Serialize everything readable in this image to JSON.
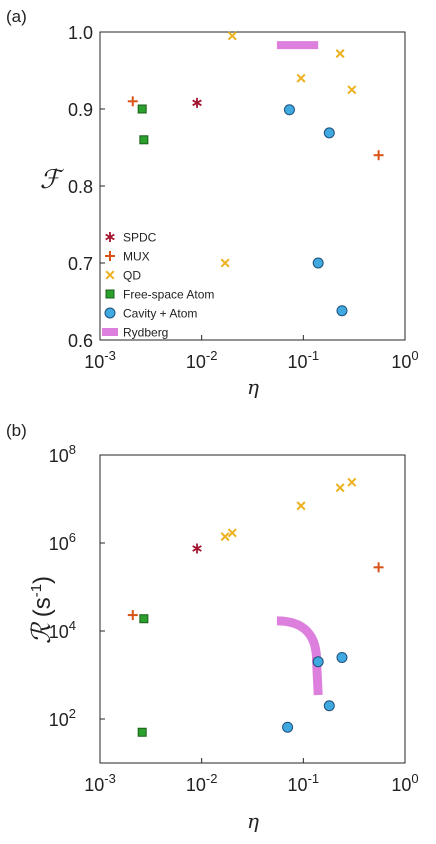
{
  "chart_data": [
    {
      "panel_label": "(a)",
      "type": "scatter",
      "xlabel": "η",
      "ylabel": "ℱ",
      "xscale": "log",
      "xlim": [
        0.001,
        1
      ],
      "ylim": [
        0.6,
        1.0
      ],
      "x_ticks": [
        {
          "value": 0.001,
          "base": "10",
          "exp": "-3"
        },
        {
          "value": 0.01,
          "base": "10",
          "exp": "-2"
        },
        {
          "value": 0.1,
          "base": "10",
          "exp": "-1"
        },
        {
          "value": 1,
          "base": "10",
          "exp": "0"
        }
      ],
      "y_ticks": [
        {
          "value": 0.6,
          "label": "0.6"
        },
        {
          "value": 0.7,
          "label": "0.7"
        },
        {
          "value": 0.8,
          "label": "0.8"
        },
        {
          "value": 0.9,
          "label": "0.9"
        },
        {
          "value": 1.0,
          "label": "1.0"
        }
      ],
      "legend_position": "bottom-left",
      "series": [
        {
          "name": "SPDC",
          "marker": "star",
          "color": "#a2142f",
          "points": [
            [
              0.009,
              0.908
            ]
          ]
        },
        {
          "name": "MUX",
          "marker": "plus",
          "color": "#d95319",
          "points": [
            [
              0.0021,
              0.91
            ],
            [
              0.55,
              0.84
            ]
          ]
        },
        {
          "name": "QD",
          "marker": "x",
          "color": "#edb120",
          "points": [
            [
              0.02,
              0.995
            ],
            [
              0.095,
              0.94
            ],
            [
              0.23,
              0.972
            ],
            [
              0.3,
              0.925
            ],
            [
              0.017,
              0.7
            ]
          ]
        },
        {
          "name": "Free-space Atom",
          "marker": "square",
          "color": "#2ca02c",
          "points": [
            [
              0.0026,
              0.9
            ],
            [
              0.0027,
              0.86
            ]
          ]
        },
        {
          "name": "Cavity + Atom",
          "marker": "circle",
          "color": "#3fa9e0",
          "points": [
            [
              0.073,
              0.899
            ],
            [
              0.18,
              0.869
            ],
            [
              0.14,
              0.7
            ],
            [
              0.24,
              0.638
            ]
          ]
        },
        {
          "name": "Rydberg",
          "marker": "bar",
          "color": "#dd80dd",
          "points": [
            [
              0.055,
              0.983
            ],
            [
              0.14,
              0.983
            ]
          ]
        }
      ]
    },
    {
      "panel_label": "(b)",
      "type": "scatter",
      "xlabel": "η",
      "ylabel_symbol": "ℛ",
      "ylabel_unit_open": "(s",
      "ylabel_unit_exp": "-1",
      "ylabel_unit_close": ")",
      "xscale": "log",
      "yscale": "log",
      "xlim": [
        0.001,
        1
      ],
      "ylim": [
        10,
        100000000
      ],
      "x_ticks": [
        {
          "value": 0.001,
          "base": "10",
          "exp": "-3"
        },
        {
          "value": 0.01,
          "base": "10",
          "exp": "-2"
        },
        {
          "value": 0.1,
          "base": "10",
          "exp": "-1"
        },
        {
          "value": 1,
          "base": "10",
          "exp": "0"
        }
      ],
      "y_ticks": [
        {
          "value": 100,
          "base": "10",
          "exp": "2"
        },
        {
          "value": 10000,
          "base": "10",
          "exp": "4"
        },
        {
          "value": 1000000,
          "base": "10",
          "exp": "6"
        },
        {
          "value": 100000000,
          "base": "10",
          "exp": "8"
        }
      ],
      "series": [
        {
          "name": "SPDC",
          "marker": "star",
          "color": "#a2142f",
          "points": [
            [
              0.009,
              750000
            ]
          ]
        },
        {
          "name": "MUX",
          "marker": "plus",
          "color": "#d95319",
          "points": [
            [
              0.0021,
              23000
            ],
            [
              0.55,
              280000
            ]
          ]
        },
        {
          "name": "QD",
          "marker": "x",
          "color": "#edb120",
          "points": [
            [
              0.017,
              1400000
            ],
            [
              0.02,
              1700000
            ],
            [
              0.095,
              7000000
            ],
            [
              0.23,
              18000000
            ],
            [
              0.3,
              24000000
            ]
          ]
        },
        {
          "name": "Free-space Atom",
          "marker": "square",
          "color": "#2ca02c",
          "points": [
            [
              0.0027,
              19000
            ],
            [
              0.0026,
              50
            ]
          ]
        },
        {
          "name": "Cavity + Atom",
          "marker": "circle",
          "color": "#3fa9e0",
          "points": [
            [
              0.14,
              2000
            ],
            [
              0.24,
              2500
            ],
            [
              0.18,
              200
            ],
            [
              0.07,
              65
            ]
          ]
        },
        {
          "name": "Rydberg",
          "marker": "curve",
          "color": "#dd80dd",
          "points": [
            [
              0.055,
              17000
            ],
            [
              0.09,
              14000
            ],
            [
              0.12,
              7000
            ],
            [
              0.135,
              2000
            ],
            [
              0.14,
              350
            ]
          ]
        }
      ]
    }
  ]
}
